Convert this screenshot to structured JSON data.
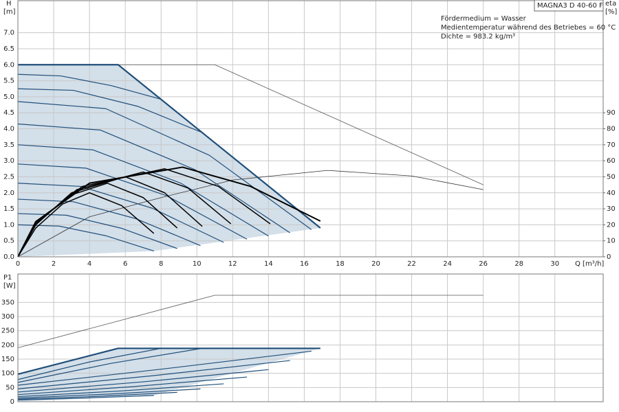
{
  "chart_data": [
    {
      "type": "line",
      "title": "MAGNA3 D 40-60 F",
      "annotations": [
        "Fördermedium = Wasser",
        "Medientemperatur während des Betriebes = 60 °C",
        "Dichte = 983.2 kg/m³"
      ],
      "y_label": "H",
      "y_unit": "[m]",
      "y2_label": "eta",
      "y2_unit": "[%]",
      "x_label": "Q [m³/h]",
      "xlim": [
        0,
        32.7
      ],
      "xticks": [
        0,
        2,
        4,
        6,
        8,
        10,
        12,
        14,
        16,
        18,
        20,
        22,
        24,
        26,
        28,
        30
      ],
      "ylim": [
        0,
        8
      ],
      "yticks": [
        {
          "value": 0,
          "label": "0.0"
        },
        0.5,
        {
          "value": 1,
          "label": "1.0"
        },
        1.5,
        {
          "value": 2,
          "label": "2.0"
        },
        2.5,
        {
          "value": 3,
          "label": "3.0"
        },
        3.5,
        {
          "value": 4,
          "label": "4.0"
        },
        4.5,
        {
          "value": 5,
          "label": "5.0"
        },
        5.5,
        {
          "value": 6,
          "label": "6.0"
        },
        6.5,
        {
          "value": 7,
          "label": "7.0"
        }
      ],
      "y2lim": [
        0,
        160
      ],
      "y2ticks": [
        0,
        10,
        20,
        30,
        40,
        50,
        60,
        70,
        80,
        90
      ],
      "grid": true,
      "x_tick_labels": true,
      "area": {
        "color": "#d3dfe9",
        "x": [
          0,
          0,
          5.6,
          16.9,
          7.6
        ],
        "values": [
          0,
          6,
          6,
          0.9,
          0.18
        ]
      },
      "series": [
        {
          "color": "#555555",
          "width": 0.8,
          "x": [
            0,
            11,
            26
          ],
          "values": [
            6,
            6,
            2.25
          ]
        },
        {
          "color": "#333333",
          "width": 0.8,
          "axis": "y2",
          "x": [
            0,
            4,
            8,
            12,
            17.3,
            22,
            26
          ],
          "values": [
            0,
            25,
            37,
            48,
            54,
            50.5,
            42
          ]
        },
        {
          "color": "#1f4e79",
          "width": 1.2,
          "x": [
            0,
            2.3,
            4.9,
            7.6
          ],
          "values": [
            1.0,
            0.96,
            0.66,
            0.18
          ]
        },
        {
          "color": "#1f4e79",
          "width": 1.2,
          "x": [
            0,
            2.7,
            5.8,
            8.9
          ],
          "values": [
            1.35,
            1.3,
            0.89,
            0.26
          ]
        },
        {
          "color": "#1f4e79",
          "width": 1.2,
          "x": [
            0,
            3.1,
            6.6,
            10.2
          ],
          "values": [
            1.8,
            1.72,
            1.19,
            0.35
          ]
        },
        {
          "color": "#1f4e79",
          "width": 1.2,
          "x": [
            0,
            3.5,
            7.5,
            11.5
          ],
          "values": [
            2.3,
            2.2,
            1.52,
            0.45
          ]
        },
        {
          "color": "#1f4e79",
          "width": 1.2,
          "x": [
            0,
            3.8,
            8.3,
            12.8
          ],
          "values": [
            2.9,
            2.77,
            1.91,
            0.55
          ]
        },
        {
          "color": "#1f4e79",
          "width": 1.2,
          "x": [
            0,
            4.2,
            9.1,
            14.0
          ],
          "values": [
            3.5,
            3.34,
            2.3,
            0.65
          ]
        },
        {
          "color": "#1f4e79",
          "width": 1.2,
          "x": [
            0,
            4.6,
            9.9,
            15.2
          ],
          "values": [
            4.15,
            3.96,
            2.72,
            0.75
          ]
        },
        {
          "color": "#1f4e79",
          "width": 1.2,
          "x": [
            0,
            4.9,
            10.7,
            16.4
          ],
          "values": [
            4.85,
            4.63,
            3.17,
            0.85
          ]
        },
        {
          "color": "#1f4e79",
          "width": 1.2,
          "x": [
            0,
            3.1,
            6.7,
            10.3
          ],
          "values": [
            5.25,
            5.2,
            4.7,
            3.88
          ]
        },
        {
          "color": "#1f4e79",
          "width": 1.2,
          "x": [
            0,
            2.4,
            5.2,
            8.0
          ],
          "values": [
            5.7,
            5.65,
            5.35,
            4.92
          ]
        },
        {
          "color": "#1f4e79",
          "width": 2.2,
          "x": [
            0,
            5.6,
            16.9
          ],
          "values": [
            6.0,
            6.0,
            0.9
          ]
        },
        {
          "color": "#000000",
          "width": 1.5,
          "axis": "y2",
          "x": [
            0,
            1,
            2.5,
            4,
            5.8,
            7.6
          ],
          "values": [
            0,
            18,
            33,
            40,
            32,
            14.6
          ]
        },
        {
          "color": "#000000",
          "width": 1.5,
          "axis": "y2",
          "x": [
            0,
            1,
            2.8,
            5,
            7,
            8.9
          ],
          "values": [
            0,
            20,
            38,
            46,
            37,
            18
          ]
        },
        {
          "color": "#000000",
          "width": 1.5,
          "axis": "y2",
          "x": [
            0,
            1,
            3,
            6,
            8.2,
            10.3
          ],
          "values": [
            0,
            20,
            40,
            50,
            40,
            19
          ]
        },
        {
          "color": "#000000",
          "width": 1.5,
          "axis": "y2",
          "x": [
            0,
            1,
            3.3,
            7,
            9.5,
            11.9
          ],
          "values": [
            0,
            21,
            42,
            53,
            43,
            20.6
          ]
        },
        {
          "color": "#000000",
          "width": 1.5,
          "axis": "y2",
          "x": [
            0,
            1,
            3.6,
            8.2,
            11.2,
            14.1
          ],
          "values": [
            0,
            21,
            44,
            55,
            44,
            20.6
          ]
        },
        {
          "color": "#000000",
          "width": 2,
          "axis": "y2",
          "x": [
            0,
            1,
            4,
            9.2,
            13,
            16.9
          ],
          "values": [
            0,
            22,
            46,
            56,
            44,
            22.3
          ]
        }
      ]
    },
    {
      "type": "line",
      "y_label": "P1",
      "y_unit": "[W]",
      "xlim": [
        0,
        32.7
      ],
      "xticks": [
        0,
        2,
        4,
        6,
        8,
        10,
        12,
        14,
        16,
        18,
        20,
        22,
        24,
        26,
        28,
        30
      ],
      "ylim": [
        0,
        450
      ],
      "yticks": [
        0,
        50,
        100,
        150,
        200,
        250,
        300,
        350
      ],
      "grid": true,
      "x_tick_labels": false,
      "area": {
        "color": "#d3dfe9",
        "x": [
          0,
          0,
          5.6,
          16.9,
          7.6
        ],
        "values": [
          0,
          97,
          188,
          188,
          22
        ]
      },
      "series": [
        {
          "color": "#555555",
          "width": 0.8,
          "x": [
            0,
            11,
            26
          ],
          "values": [
            190,
            375,
            375
          ]
        },
        {
          "color": "#1f4e79",
          "width": 1.2,
          "x": [
            0,
            3.8,
            7.6
          ],
          "values": [
            6,
            13,
            22
          ]
        },
        {
          "color": "#1f4e79",
          "width": 1.2,
          "x": [
            0,
            4.5,
            8.9
          ],
          "values": [
            9,
            19,
            33
          ]
        },
        {
          "color": "#1f4e79",
          "width": 1.2,
          "x": [
            0,
            5.1,
            10.2
          ],
          "values": [
            13,
            27,
            45
          ]
        },
        {
          "color": "#1f4e79",
          "width": 1.2,
          "x": [
            0,
            5.8,
            11.5
          ],
          "values": [
            18,
            38,
            63
          ]
        },
        {
          "color": "#1f4e79",
          "width": 1.2,
          "x": [
            0,
            6.4,
            12.8
          ],
          "values": [
            25,
            53,
            87
          ]
        },
        {
          "color": "#1f4e79",
          "width": 1.2,
          "x": [
            0,
            7.0,
            14.0
          ],
          "values": [
            34,
            70,
            113
          ]
        },
        {
          "color": "#1f4e79",
          "width": 1.2,
          "x": [
            0,
            7.6,
            15.2
          ],
          "values": [
            45,
            92,
            145
          ]
        },
        {
          "color": "#1f4e79",
          "width": 1.2,
          "x": [
            0,
            8.2,
            16.4
          ],
          "values": [
            58,
            116,
            178
          ]
        },
        {
          "color": "#1f4e79",
          "width": 1.2,
          "x": [
            0,
            5.2,
            10.3
          ],
          "values": [
            68,
            135,
            188
          ]
        },
        {
          "color": "#1f4e79",
          "width": 1.2,
          "x": [
            0,
            4.0,
            8.0
          ],
          "values": [
            78,
            140,
            188
          ]
        },
        {
          "color": "#1f4e79",
          "width": 2.2,
          "x": [
            0,
            5.6,
            16.9
          ],
          "values": [
            97,
            188,
            188
          ]
        }
      ]
    }
  ]
}
